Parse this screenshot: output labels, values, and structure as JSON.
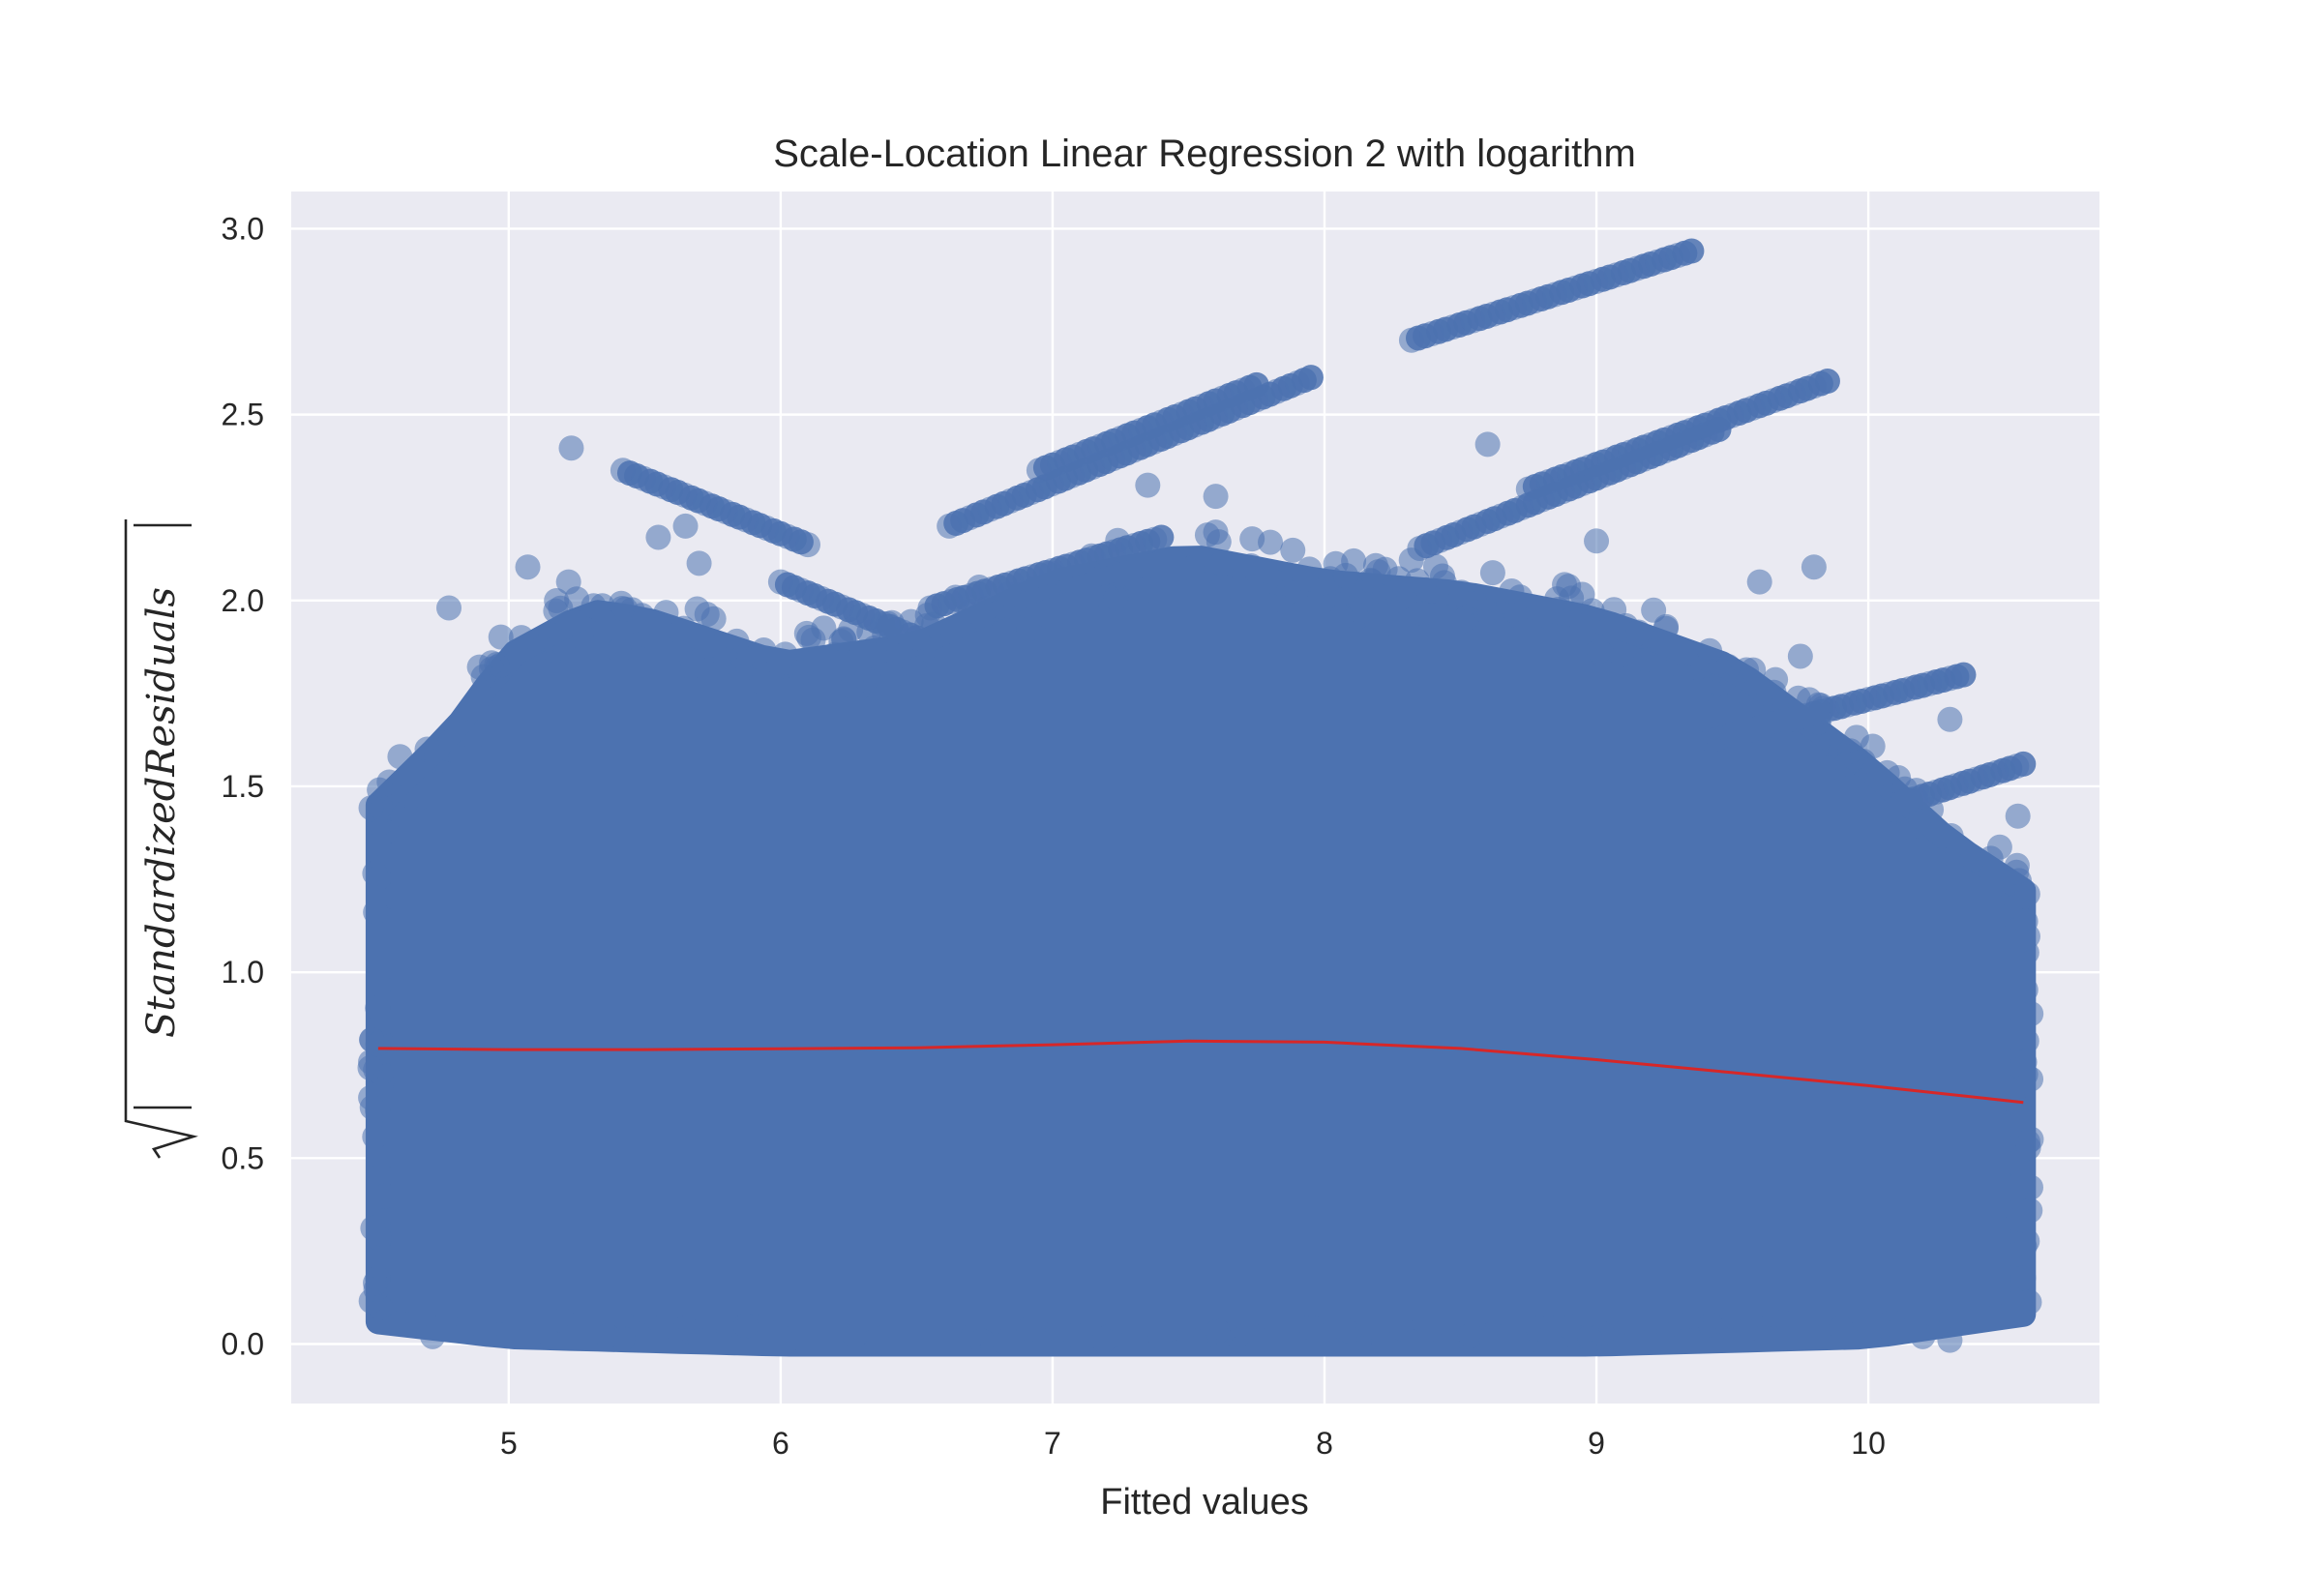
{
  "chart_data": {
    "type": "scatter",
    "title": "Scale-Location Linear Regression 2 with logarithm",
    "xlabel": "Fitted values",
    "ylabel": "StandardizedResiduals",
    "xlim": [
      4.2,
      10.85
    ],
    "ylim": [
      -0.16,
      3.1
    ],
    "x_ticks": [
      5,
      6,
      7,
      8,
      9,
      10
    ],
    "y_ticks": [
      0.0,
      0.5,
      1.0,
      1.5,
      2.0,
      2.5,
      3.0
    ],
    "x_tick_labels": [
      "5",
      "6",
      "7",
      "8",
      "9",
      "10"
    ],
    "y_tick_labels": [
      "0.0",
      "0.5",
      "1.0",
      "1.5",
      "2.0",
      "2.5",
      "3.0"
    ],
    "grid": true,
    "legend": "none",
    "colors": {
      "background": "#eaeaf2",
      "grid": "#ffffff",
      "points": "#4c72b0",
      "trend": "#d62728"
    },
    "point_cloud": {
      "x_range": [
        4.52,
        10.57
      ],
      "envelope_top": [
        [
          4.52,
          1.45
        ],
        [
          4.8,
          1.65
        ],
        [
          5.0,
          1.85
        ],
        [
          5.3,
          1.97
        ],
        [
          5.5,
          1.95
        ],
        [
          6.0,
          1.83
        ],
        [
          6.5,
          1.88
        ],
        [
          7.0,
          2.05
        ],
        [
          7.5,
          2.12
        ],
        [
          8.0,
          2.05
        ],
        [
          8.5,
          2.02
        ],
        [
          9.0,
          1.95
        ],
        [
          9.5,
          1.82
        ],
        [
          10.0,
          1.55
        ],
        [
          10.3,
          1.35
        ],
        [
          10.57,
          1.22
        ]
      ],
      "envelope_bottom": [
        [
          4.52,
          0.06
        ],
        [
          5.0,
          0.02
        ],
        [
          6.0,
          0.0
        ],
        [
          7.0,
          0.0
        ],
        [
          8.0,
          0.0
        ],
        [
          9.0,
          0.0
        ],
        [
          10.0,
          0.02
        ],
        [
          10.57,
          0.08
        ]
      ]
    },
    "streaks": [
      {
        "x": [
          5.42,
          6.1
        ],
        "y": [
          2.35,
          2.15
        ]
      },
      {
        "x": [
          6.62,
          7.95
        ],
        "y": [
          2.2,
          2.6
        ]
      },
      {
        "x": [
          6.95,
          7.75
        ],
        "y": [
          2.35,
          2.58
        ]
      },
      {
        "x": [
          8.32,
          9.35
        ],
        "y": [
          2.7,
          2.94
        ]
      },
      {
        "x": [
          8.75,
          9.85
        ],
        "y": [
          2.3,
          2.59
        ]
      },
      {
        "x": [
          8.35,
          9.45
        ],
        "y": [
          2.14,
          2.46
        ]
      },
      {
        "x": [
          6.55,
          7.4
        ],
        "y": [
          1.98,
          2.17
        ]
      },
      {
        "x": [
          6.0,
          6.5
        ],
        "y": [
          2.05,
          1.9
        ]
      },
      {
        "x": [
          9.4,
          10.35
        ],
        "y": [
          1.62,
          1.8
        ]
      },
      {
        "x": [
          10.1,
          10.57
        ],
        "y": [
          1.45,
          1.56
        ]
      }
    ],
    "outliers": [
      {
        "x": 5.23,
        "y": 2.41
      },
      {
        "x": 4.78,
        "y": 1.98
      },
      {
        "x": 5.07,
        "y": 2.09
      },
      {
        "x": 5.22,
        "y": 2.05
      },
      {
        "x": 5.55,
        "y": 2.17
      },
      {
        "x": 5.65,
        "y": 2.2
      },
      {
        "x": 5.7,
        "y": 2.1
      },
      {
        "x": 7.35,
        "y": 2.31
      },
      {
        "x": 8.6,
        "y": 2.42
      },
      {
        "x": 9.8,
        "y": 2.09
      },
      {
        "x": 9.6,
        "y": 2.05
      },
      {
        "x": 9.0,
        "y": 2.16
      },
      {
        "x": 7.6,
        "y": 2.28
      },
      {
        "x": 10.55,
        "y": 1.42
      },
      {
        "x": 10.3,
        "y": 1.68
      },
      {
        "x": 9.75,
        "y": 1.85
      },
      {
        "x": 4.6,
        "y": 1.58
      },
      {
        "x": 4.7,
        "y": 1.6
      },
      {
        "x": 10.2,
        "y": 0.02
      },
      {
        "x": 10.3,
        "y": 0.01
      },
      {
        "x": 4.72,
        "y": 0.02
      }
    ],
    "trend": {
      "x": [
        4.52,
        5.0,
        5.5,
        6.0,
        6.5,
        7.0,
        7.5,
        8.0,
        8.5,
        9.0,
        9.5,
        10.0,
        10.57
      ],
      "y": [
        0.795,
        0.792,
        0.792,
        0.794,
        0.797,
        0.805,
        0.815,
        0.812,
        0.795,
        0.765,
        0.73,
        0.695,
        0.65
      ]
    }
  }
}
